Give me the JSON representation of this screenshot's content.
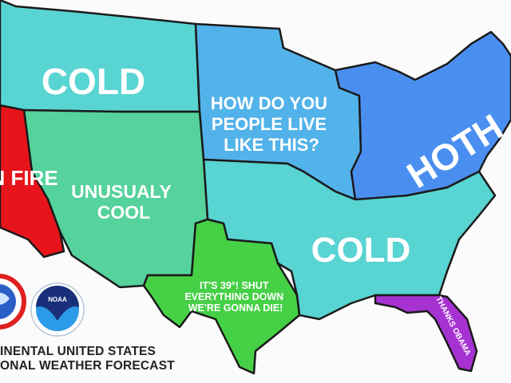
{
  "regions": [
    {
      "id": "northwest",
      "label": "COLD",
      "color": "#58d4d2"
    },
    {
      "id": "california",
      "label": "ON FIRE",
      "color": "#e8141b"
    },
    {
      "id": "southwest",
      "label_lines": [
        "UNUSUALY",
        "COOL"
      ],
      "color": "#56d29c"
    },
    {
      "id": "midwest",
      "label_lines": [
        "HOW DO YOU",
        "PEOPLE LIVE",
        "LIKE THIS?"
      ],
      "color": "#52b2ea"
    },
    {
      "id": "northeast",
      "label": "HOTH",
      "color": "#4a8ff0"
    },
    {
      "id": "south",
      "label": "COLD",
      "color": "#58d4d2"
    },
    {
      "id": "texas",
      "label_lines": [
        "IT'S 39°! SHUT",
        "EVERYTHING DOWN",
        "WE'RE GONNA DIE!"
      ],
      "color": "#46d046"
    },
    {
      "id": "florida",
      "label": "THANKS OBAMA",
      "color": "#a632d2"
    }
  ],
  "logos": {
    "nws": "NATIONAL WEATHER SERVICE",
    "noaa": "NOAA"
  },
  "footer": {
    "line1": "INENTAL UNITED STATES",
    "line2": "ONAL WEATHER FORECAST"
  }
}
